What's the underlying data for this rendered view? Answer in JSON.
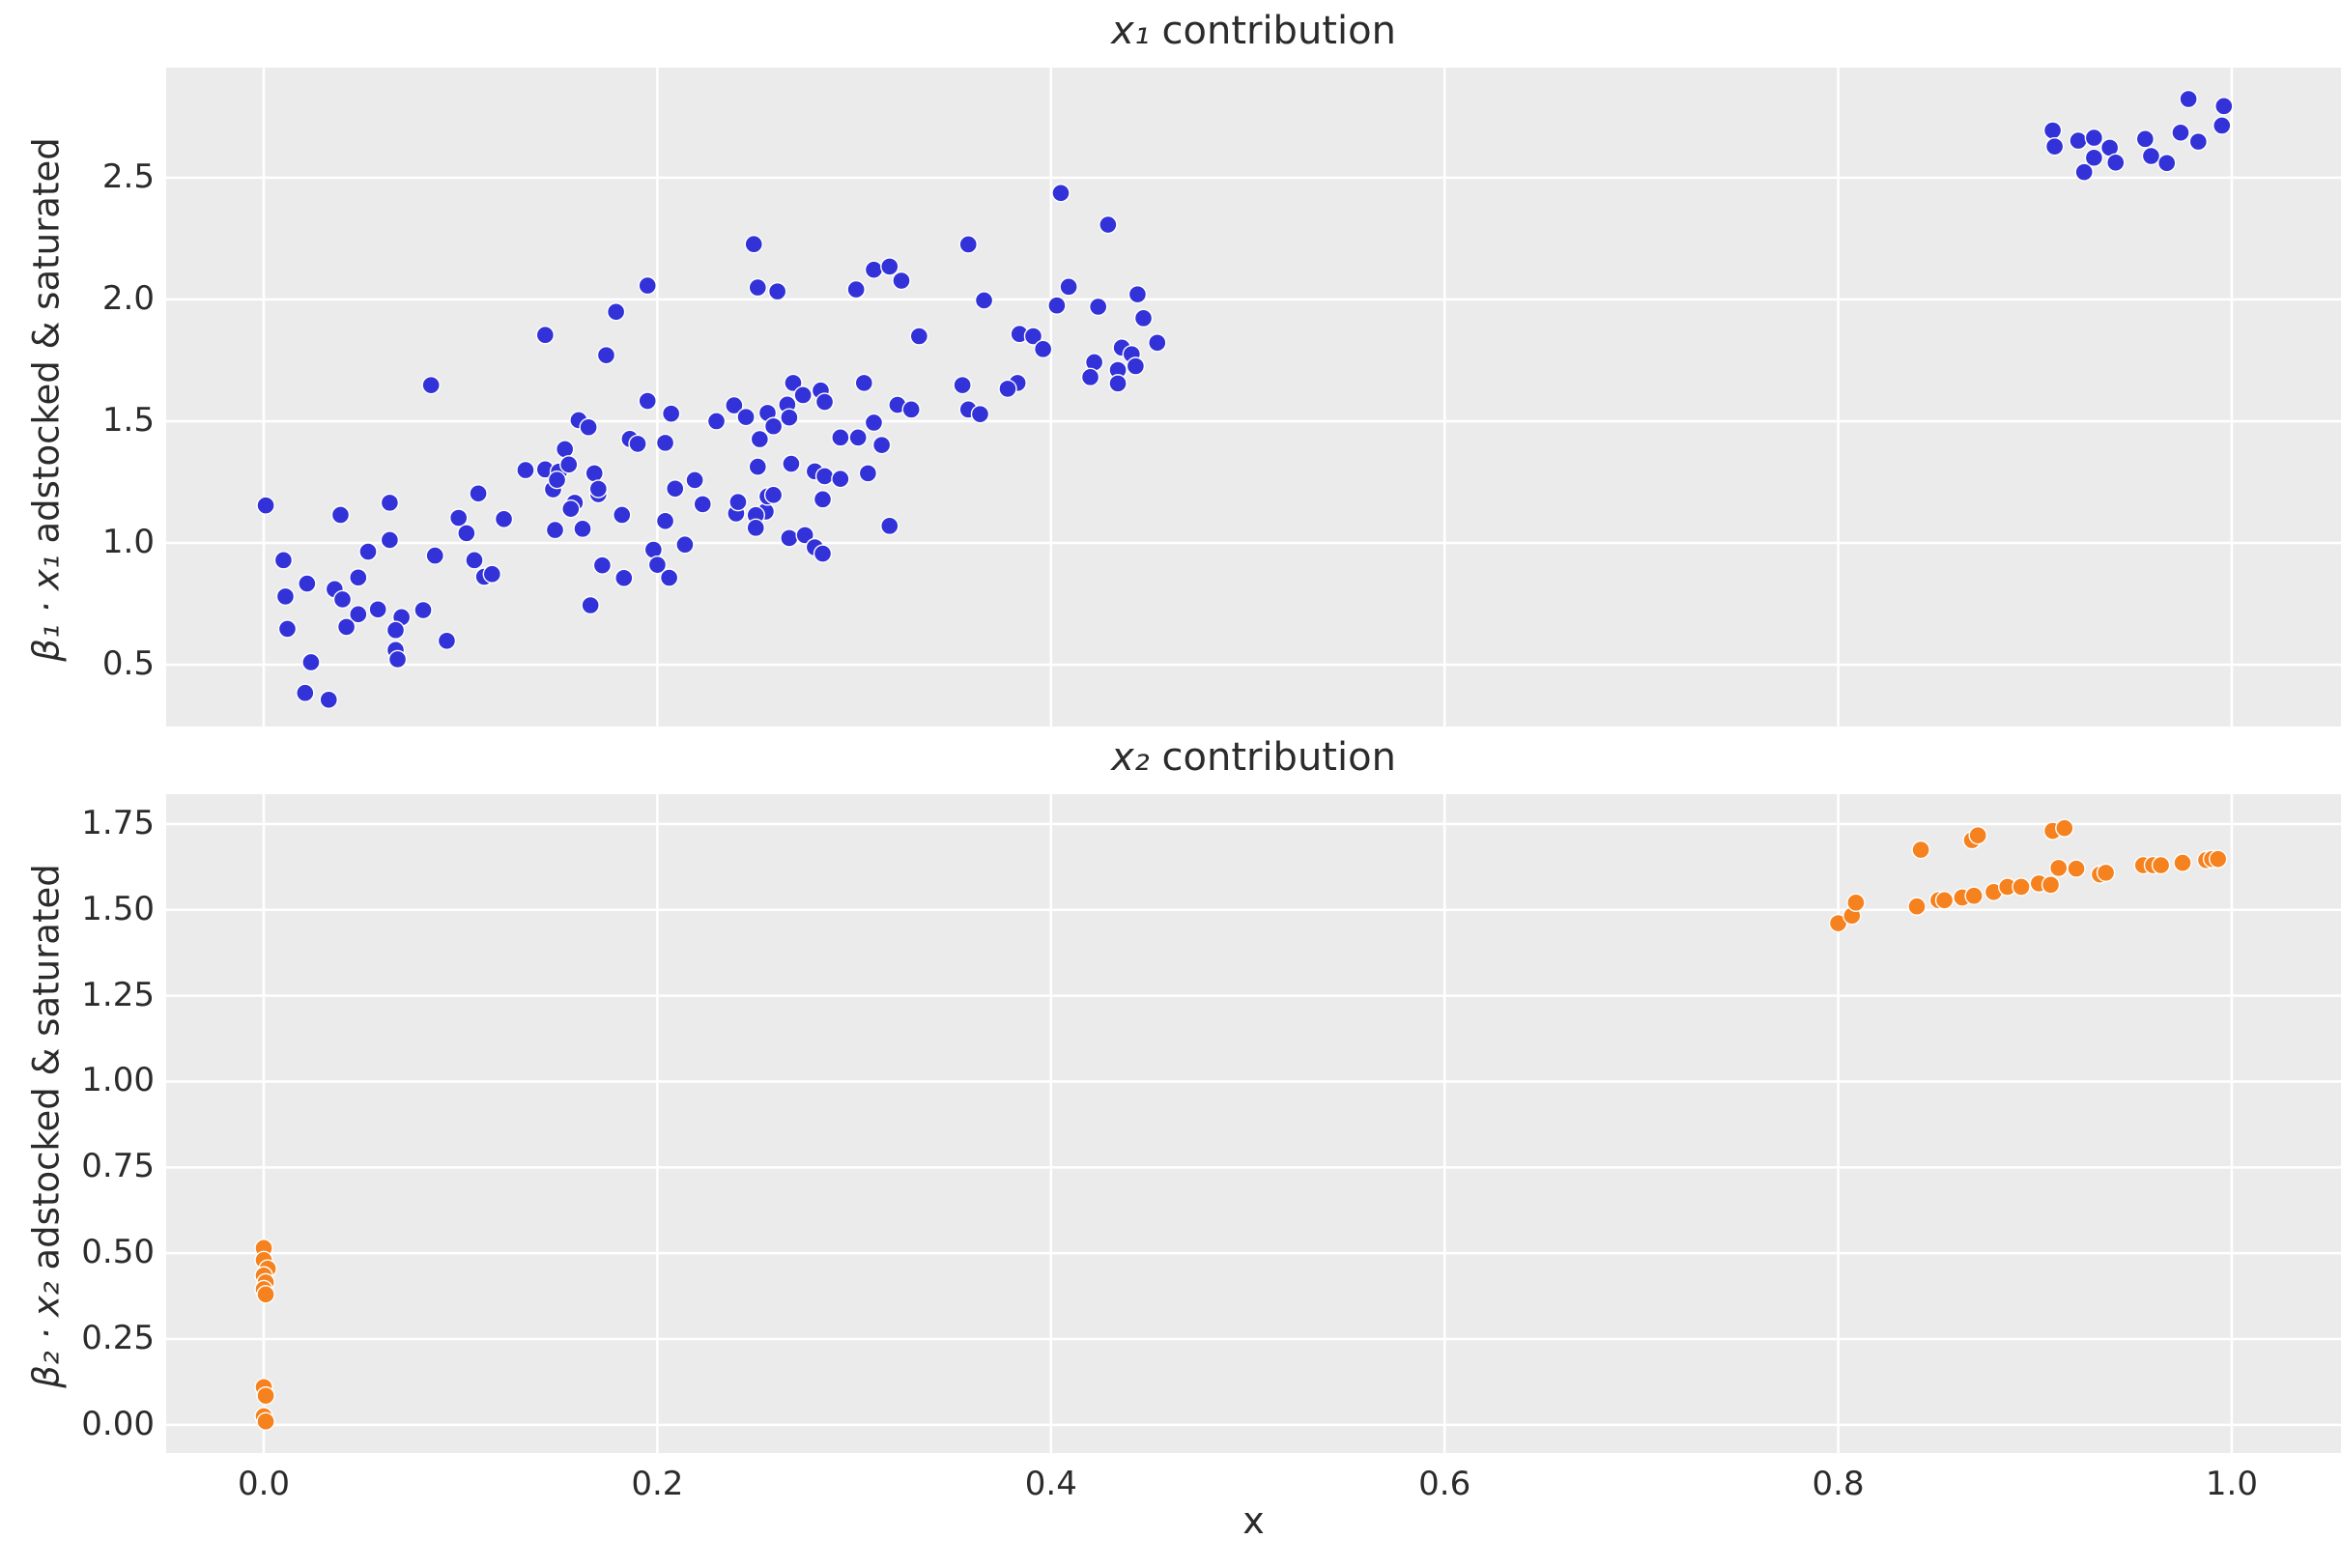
{
  "figure": {
    "background": "#ffffff",
    "axes_background": "#ebebeb",
    "grid_color": "#ffffff",
    "text_color": "#2b2b2b"
  },
  "xlabel": "x",
  "x_ticks": [
    {
      "label": "0.0",
      "value": 0.0
    },
    {
      "label": "0.2",
      "value": 0.2
    },
    {
      "label": "0.4",
      "value": 0.4
    },
    {
      "label": "0.6",
      "value": 0.6
    },
    {
      "label": "0.8",
      "value": 0.8
    },
    {
      "label": "1.0",
      "value": 1.0
    }
  ],
  "chart_data": [
    {
      "type": "scatter",
      "title_math": "x₁",
      "title_rest": " contribution",
      "ylabel_math": "β₁ · x₁",
      "ylabel_rest": " adstocked & saturated",
      "legend": "none",
      "grid": true,
      "marker_color": "#3232d8",
      "marker_edge_color": "#ffffff",
      "xlim": [
        -0.0496,
        1.0555
      ],
      "ylim": [
        0.246,
        2.952
      ],
      "y_ticks": [
        {
          "label": "0.5",
          "value": 0.5
        },
        {
          "label": "1.0",
          "value": 1.0
        },
        {
          "label": "1.5",
          "value": 1.5
        },
        {
          "label": "2.0",
          "value": 2.0
        },
        {
          "label": "2.5",
          "value": 2.5
        }
      ],
      "points": [
        [
          0.001,
          1.154
        ],
        [
          0.039,
          1.115
        ],
        [
          0.064,
          1.165
        ],
        [
          0.109,
          1.203
        ],
        [
          0.147,
          1.22
        ],
        [
          0.158,
          1.165
        ],
        [
          0.17,
          1.2
        ],
        [
          0.156,
          1.14
        ],
        [
          0.099,
          1.103
        ],
        [
          0.122,
          1.098
        ],
        [
          0.162,
          1.058
        ],
        [
          0.148,
          1.053
        ],
        [
          0.182,
          1.115
        ],
        [
          0.103,
          1.04
        ],
        [
          0.064,
          1.012
        ],
        [
          0.053,
          0.964
        ],
        [
          0.01,
          0.929
        ],
        [
          0.087,
          0.948
        ],
        [
          0.107,
          0.929
        ],
        [
          0.172,
          0.908
        ],
        [
          0.112,
          0.861
        ],
        [
          0.116,
          0.872
        ],
        [
          0.022,
          0.833
        ],
        [
          0.048,
          0.858
        ],
        [
          0.011,
          0.78
        ],
        [
          0.036,
          0.81
        ],
        [
          0.04,
          0.768
        ],
        [
          0.048,
          0.707
        ],
        [
          0.042,
          0.655
        ],
        [
          0.058,
          0.727
        ],
        [
          0.07,
          0.695
        ],
        [
          0.081,
          0.724
        ],
        [
          0.067,
          0.642
        ],
        [
          0.093,
          0.598
        ],
        [
          0.012,
          0.647
        ],
        [
          0.067,
          0.56
        ],
        [
          0.068,
          0.522
        ],
        [
          0.024,
          0.51
        ],
        [
          0.021,
          0.384
        ],
        [
          0.033,
          0.356
        ],
        [
          0.166,
          0.744
        ],
        [
          0.183,
          0.856
        ],
        [
          0.198,
          0.972
        ],
        [
          0.085,
          1.648
        ],
        [
          0.143,
          1.854
        ],
        [
          0.174,
          1.771
        ],
        [
          0.179,
          1.949
        ],
        [
          0.195,
          2.057
        ],
        [
          0.195,
          1.583
        ],
        [
          0.207,
          1.531
        ],
        [
          0.16,
          1.504
        ],
        [
          0.165,
          1.475
        ],
        [
          0.186,
          1.427
        ],
        [
          0.19,
          1.407
        ],
        [
          0.204,
          1.411
        ],
        [
          0.153,
          1.385
        ],
        [
          0.133,
          1.299
        ],
        [
          0.143,
          1.302
        ],
        [
          0.15,
          1.293
        ],
        [
          0.155,
          1.322
        ],
        [
          0.168,
          1.286
        ],
        [
          0.149,
          1.259
        ],
        [
          0.17,
          1.222
        ],
        [
          0.249,
          2.227
        ],
        [
          0.251,
          2.049
        ],
        [
          0.261,
          2.033
        ],
        [
          0.301,
          2.041
        ],
        [
          0.31,
          2.122
        ],
        [
          0.318,
          2.135
        ],
        [
          0.324,
          2.077
        ],
        [
          0.358,
          2.226
        ],
        [
          0.366,
          1.996
        ],
        [
          0.405,
          2.437
        ],
        [
          0.429,
          2.307
        ],
        [
          0.409,
          2.052
        ],
        [
          0.403,
          1.975
        ],
        [
          0.424,
          1.97
        ],
        [
          0.444,
          2.021
        ],
        [
          0.447,
          1.923
        ],
        [
          0.454,
          1.822
        ],
        [
          0.384,
          1.858
        ],
        [
          0.391,
          1.849
        ],
        [
          0.396,
          1.796
        ],
        [
          0.436,
          1.802
        ],
        [
          0.441,
          1.775
        ],
        [
          0.434,
          1.71
        ],
        [
          0.434,
          1.655
        ],
        [
          0.443,
          1.726
        ],
        [
          0.422,
          1.742
        ],
        [
          0.42,
          1.681
        ],
        [
          0.383,
          1.657
        ],
        [
          0.378,
          1.633
        ],
        [
          0.355,
          1.648
        ],
        [
          0.358,
          1.548
        ],
        [
          0.364,
          1.529
        ],
        [
          0.333,
          1.849
        ],
        [
          0.322,
          1.567
        ],
        [
          0.329,
          1.548
        ],
        [
          0.305,
          1.657
        ],
        [
          0.31,
          1.494
        ],
        [
          0.314,
          1.402
        ],
        [
          0.302,
          1.433
        ],
        [
          0.293,
          1.433
        ],
        [
          0.283,
          1.626
        ],
        [
          0.285,
          1.579
        ],
        [
          0.269,
          1.657
        ],
        [
          0.274,
          1.607
        ],
        [
          0.266,
          1.568
        ],
        [
          0.267,
          1.515
        ],
        [
          0.256,
          1.534
        ],
        [
          0.259,
          1.479
        ],
        [
          0.252,
          1.426
        ],
        [
          0.239,
          1.565
        ],
        [
          0.245,
          1.517
        ],
        [
          0.23,
          1.5
        ],
        [
          0.209,
          1.223
        ],
        [
          0.223,
          1.159
        ],
        [
          0.204,
          1.09
        ],
        [
          0.24,
          1.121
        ],
        [
          0.255,
          1.129
        ],
        [
          0.256,
          1.191
        ],
        [
          0.267,
          1.02
        ],
        [
          0.275,
          1.032
        ],
        [
          0.28,
          0.982
        ],
        [
          0.284,
          0.956
        ],
        [
          0.25,
          1.114
        ],
        [
          0.25,
          1.062
        ],
        [
          0.219,
          1.258
        ],
        [
          0.241,
          1.168
        ],
        [
          0.251,
          1.313
        ],
        [
          0.259,
          1.197
        ],
        [
          0.268,
          1.325
        ],
        [
          0.28,
          1.294
        ],
        [
          0.285,
          1.274
        ],
        [
          0.293,
          1.263
        ],
        [
          0.284,
          1.179
        ],
        [
          0.307,
          1.286
        ],
        [
          0.318,
          1.07
        ],
        [
          0.214,
          0.993
        ],
        [
          0.2,
          0.91
        ],
        [
          0.206,
          0.857
        ],
        [
          0.909,
          2.694
        ],
        [
          0.91,
          2.628
        ],
        [
          0.922,
          2.652
        ],
        [
          0.93,
          2.664
        ],
        [
          0.93,
          2.582
        ],
        [
          0.938,
          2.623
        ],
        [
          0.925,
          2.523
        ],
        [
          0.941,
          2.562
        ],
        [
          0.956,
          2.659
        ],
        [
          0.959,
          2.589
        ],
        [
          0.967,
          2.56
        ],
        [
          0.974,
          2.685
        ],
        [
          0.978,
          2.823
        ],
        [
          0.983,
          2.648
        ],
        [
          0.995,
          2.714
        ],
        [
          0.996,
          2.794
        ]
      ]
    },
    {
      "type": "scatter",
      "title_math": "x₂",
      "title_rest": " contribution",
      "ylabel_math": "β₂ · x₂",
      "ylabel_rest": " adstocked & saturated",
      "legend": "none",
      "grid": true,
      "marker_color": "#f5821f",
      "marker_edge_color": "#ffffff",
      "xlim": [
        -0.0496,
        1.0555
      ],
      "ylim": [
        -0.082,
        1.837
      ],
      "y_ticks": [
        {
          "label": "0.00",
          "value": 0.0
        },
        {
          "label": "0.25",
          "value": 0.25
        },
        {
          "label": "0.50",
          "value": 0.5
        },
        {
          "label": "0.75",
          "value": 0.75
        },
        {
          "label": "1.00",
          "value": 1.0
        },
        {
          "label": "1.25",
          "value": 1.25
        },
        {
          "label": "1.50",
          "value": 1.5
        },
        {
          "label": "1.75",
          "value": 1.75
        }
      ],
      "points": [
        [
          0.0,
          0.515
        ],
        [
          0.0,
          0.48
        ],
        [
          0.002,
          0.455
        ],
        [
          0.0,
          0.435
        ],
        [
          0.001,
          0.415
        ],
        [
          0.0,
          0.395
        ],
        [
          0.001,
          0.38
        ],
        [
          0.0,
          0.11
        ],
        [
          0.001,
          0.085
        ],
        [
          0.0,
          0.025
        ],
        [
          0.001,
          0.01
        ],
        [
          0.8,
          1.461
        ],
        [
          0.807,
          1.483
        ],
        [
          0.809,
          1.521
        ],
        [
          0.84,
          1.51
        ],
        [
          0.842,
          1.675
        ],
        [
          0.851,
          1.528
        ],
        [
          0.854,
          1.528
        ],
        [
          0.863,
          1.536
        ],
        [
          0.868,
          1.703
        ],
        [
          0.871,
          1.717
        ],
        [
          0.869,
          1.541
        ],
        [
          0.879,
          1.552
        ],
        [
          0.886,
          1.567
        ],
        [
          0.893,
          1.567
        ],
        [
          0.902,
          1.577
        ],
        [
          0.908,
          1.573
        ],
        [
          0.909,
          1.73
        ],
        [
          0.915,
          1.738
        ],
        [
          0.912,
          1.622
        ],
        [
          0.921,
          1.62
        ],
        [
          0.933,
          1.603
        ],
        [
          0.936,
          1.608
        ],
        [
          0.955,
          1.63
        ],
        [
          0.96,
          1.63
        ],
        [
          0.964,
          1.63
        ],
        [
          0.975,
          1.637
        ],
        [
          0.987,
          1.645
        ],
        [
          0.99,
          1.648
        ],
        [
          0.993,
          1.648
        ]
      ]
    }
  ]
}
